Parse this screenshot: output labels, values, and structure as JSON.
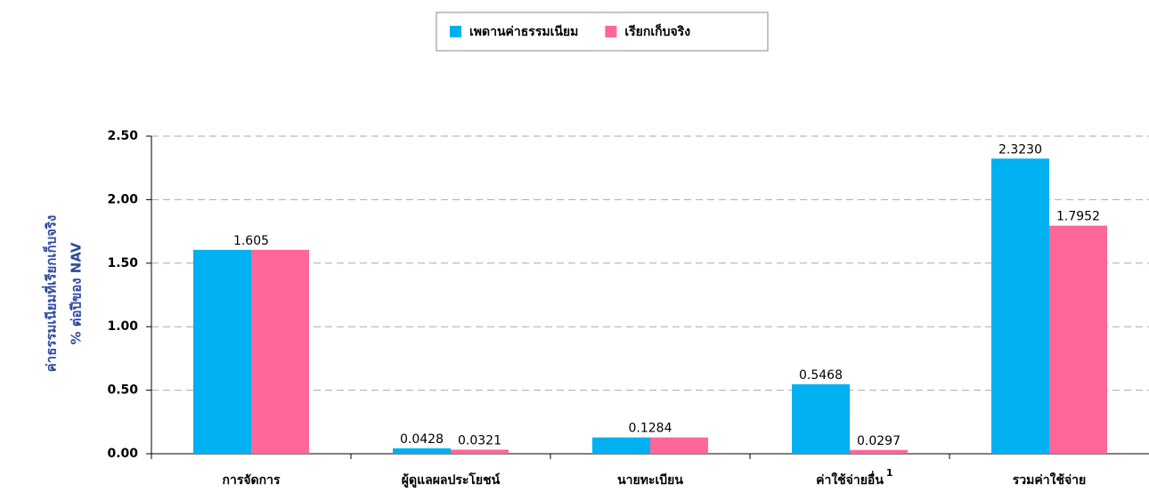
{
  "chart_data": {
    "type": "bar",
    "y_label_lines": [
      "ค่าธรรมเนียมที่เรียกเก็บจริง",
      "% ต่อปีของ NAV"
    ],
    "categories": [
      "การจัดการ",
      "ผู้ดูแลผลประโยชน์",
      "นายทะเบียน",
      "ค่าใช้จ่ายอื่น",
      "รวมค่าใช้จ่าย"
    ],
    "category_superscripts": [
      null,
      null,
      null,
      "1",
      null
    ],
    "series": [
      {
        "name": "เพดานค่าธรรมเนียม",
        "color": "#00b0f0",
        "values": [
          1.605,
          0.0428,
          0.1284,
          0.5468,
          2.323
        ],
        "value_labels": [
          "1.605",
          "0.0428",
          "0.1284",
          "0.5468",
          "2.3230"
        ]
      },
      {
        "name": "เรียกเก็บจริง",
        "color": "#ff6699",
        "values": [
          1.605,
          0.0321,
          0.1284,
          0.0297,
          1.7952
        ],
        "value_labels": [
          null,
          "0.0321",
          null,
          "0.0297",
          "1.7952"
        ]
      }
    ],
    "ylim": [
      0,
      2.5
    ],
    "yticks": [
      {
        "value": 0,
        "label": "0.00"
      },
      {
        "value": 0.5,
        "label": "0.50"
      },
      {
        "value": 1,
        "label": "1.00"
      },
      {
        "value": 1.5,
        "label": "1.50"
      },
      {
        "value": 2,
        "label": "2.00"
      },
      {
        "value": 2.5,
        "label": "2.50"
      }
    ],
    "grid": true,
    "legend": "top"
  }
}
